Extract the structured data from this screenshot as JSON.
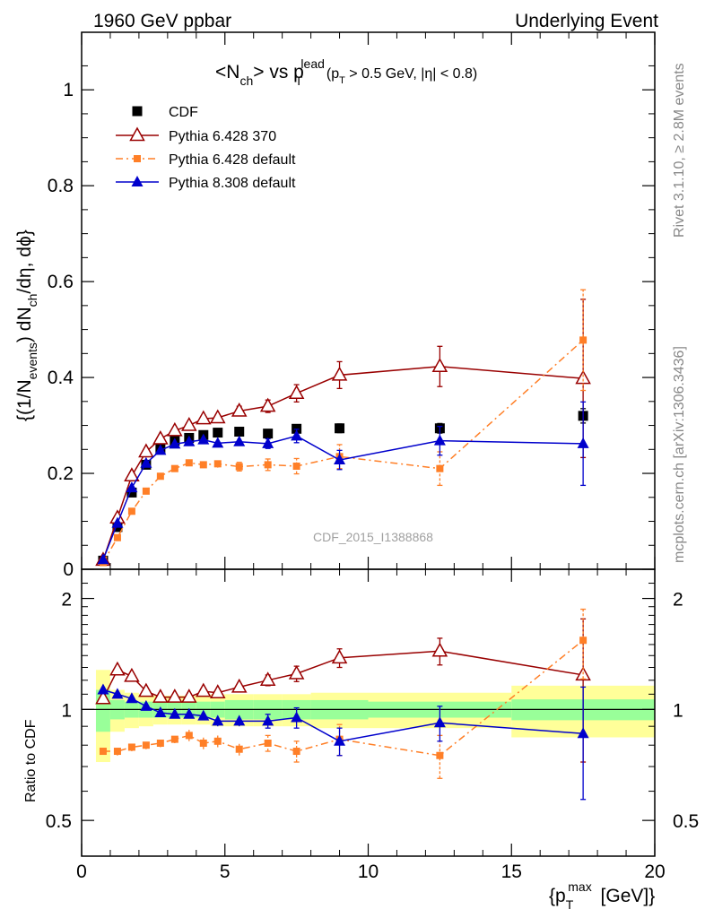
{
  "header": {
    "left": "1960 GeV ppbar",
    "right": "Underlying Event"
  },
  "plot_title": {
    "main": "<N",
    "main_sub": "ch",
    "mid": "> vs p",
    "mid_sub": "T",
    "mid_sup": "lead",
    "cut_open": "(p",
    "cut_sub": "T",
    "cut_rest": " > 0.5 GeV, |η| < 0.8)"
  },
  "side_labels": {
    "rivet": "Rivet 3.1.10, ≥ 2.8M events",
    "mcplots": "mcplots.cern.ch [arXiv:1306.3436]"
  },
  "watermark": "CDF_2015_I1388868",
  "chart_data": {
    "type": "scatter",
    "title": "<Nch> vs pT lead (pT > 0.5 GeV, |η| < 0.8)",
    "ylabel": "{(1/N_events) dN_ch/dη, dφ}",
    "xlabel": "{p_T^max [GeV]}",
    "ratio_ylabel": "Ratio to CDF",
    "xlim": [
      0,
      20
    ],
    "ylim": [
      0,
      1.12
    ],
    "ratio_ylim": [
      0.4,
      2.4
    ],
    "ratio_scale": "log",
    "x_ticks": [
      0,
      5,
      10,
      15,
      20
    ],
    "y_ticks": [
      0,
      0.2,
      0.4,
      0.6,
      0.8,
      1
    ],
    "y_tick_labels": [
      "0",
      "0.2",
      "0.4",
      "0.6",
      "0.8",
      "1"
    ],
    "ratio_ticks": [
      0.5,
      1,
      2
    ],
    "ratio_tick_labels": [
      "0.5",
      "1",
      "2"
    ],
    "legend_position": "top-left",
    "legend": [
      "CDF",
      "Pythia 6.428 370",
      "Pythia 6.428 default",
      "Pythia 8.308 default"
    ],
    "x": [
      0.75,
      1.25,
      1.75,
      2.25,
      2.75,
      3.25,
      3.75,
      4.25,
      4.75,
      5.5,
      6.5,
      7.5,
      9.0,
      12.5,
      17.5
    ],
    "band_edges": [
      0.5,
      1.0,
      1.5,
      2.0,
      2.5,
      3.0,
      3.5,
      4.0,
      4.5,
      5.0,
      6.0,
      7.0,
      8.0,
      10.0,
      15.0,
      20.0
    ],
    "band_inner": [
      0.13,
      0.06,
      0.05,
      0.05,
      0.05,
      0.05,
      0.05,
      0.05,
      0.05,
      0.06,
      0.06,
      0.06,
      0.06,
      0.05,
      0.065
    ],
    "band_outer": [
      0.28,
      0.13,
      0.11,
      0.1,
      0.09,
      0.09,
      0.09,
      0.09,
      0.1,
      0.1,
      0.1,
      0.1,
      0.11,
      0.11,
      0.16
    ],
    "series": [
      {
        "name": "CDF",
        "color": "#000000",
        "marker": "square",
        "line": "none",
        "values": [
          0.018,
          0.088,
          0.16,
          0.218,
          0.252,
          0.268,
          0.274,
          0.28,
          0.285,
          0.287,
          0.283,
          0.293,
          0.294,
          0.294,
          0.32
        ],
        "errors": [
          0.002,
          0.004,
          0.005,
          0.006,
          0.006,
          0.006,
          0.006,
          0.006,
          0.007,
          0.007,
          0.007,
          0.008,
          0.009,
          0.01,
          0.015
        ],
        "ratio": [
          1,
          1,
          1,
          1,
          1,
          1,
          1,
          1,
          1,
          1,
          1,
          1,
          1,
          1,
          1
        ],
        "ratio_err": [
          0,
          0,
          0,
          0,
          0,
          0,
          0,
          0,
          0,
          0,
          0,
          0,
          0,
          0,
          0
        ]
      },
      {
        "name": "Pythia 6.428 370",
        "color": "#990000",
        "marker": "open-triangle",
        "line": "solid",
        "values": [
          0.019,
          0.107,
          0.195,
          0.245,
          0.272,
          0.289,
          0.3,
          0.314,
          0.316,
          0.33,
          0.34,
          0.367,
          0.405,
          0.423,
          0.398
        ],
        "errors": [
          0.002,
          0.004,
          0.005,
          0.006,
          0.006,
          0.007,
          0.007,
          0.008,
          0.008,
          0.01,
          0.013,
          0.018,
          0.028,
          0.042,
          0.165
        ],
        "ratio": [
          1.07,
          1.28,
          1.23,
          1.12,
          1.08,
          1.08,
          1.08,
          1.12,
          1.11,
          1.15,
          1.2,
          1.25,
          1.38,
          1.44,
          1.24
        ],
        "ratio_err": [
          0.01,
          0.03,
          0.03,
          0.02,
          0.02,
          0.02,
          0.03,
          0.03,
          0.03,
          0.03,
          0.04,
          0.06,
          0.08,
          0.12,
          0.52
        ]
      },
      {
        "name": "Pythia 6.428 default",
        "color": "#ff7f27",
        "marker": "small-square",
        "line": "dash-dot",
        "values": [
          0.014,
          0.066,
          0.121,
          0.163,
          0.194,
          0.21,
          0.222,
          0.218,
          0.22,
          0.214,
          0.218,
          0.215,
          0.235,
          0.21,
          0.478
        ],
        "errors": [
          0.002,
          0.003,
          0.004,
          0.005,
          0.006,
          0.006,
          0.007,
          0.007,
          0.008,
          0.009,
          0.012,
          0.016,
          0.025,
          0.035,
          0.105
        ],
        "ratio": [
          0.77,
          0.77,
          0.79,
          0.8,
          0.81,
          0.83,
          0.85,
          0.81,
          0.82,
          0.78,
          0.81,
          0.77,
          0.83,
          0.75,
          1.54
        ],
        "ratio_err": [
          0.01,
          0.02,
          0.02,
          0.02,
          0.02,
          0.02,
          0.03,
          0.03,
          0.03,
          0.03,
          0.04,
          0.05,
          0.08,
          0.1,
          0.33
        ]
      },
      {
        "name": "Pythia 8.308 default",
        "color": "#0000cc",
        "marker": "triangle",
        "line": "solid",
        "values": [
          0.02,
          0.096,
          0.17,
          0.221,
          0.248,
          0.261,
          0.266,
          0.27,
          0.263,
          0.266,
          0.262,
          0.278,
          0.228,
          0.268,
          0.262
        ],
        "errors": [
          0.002,
          0.004,
          0.005,
          0.005,
          0.006,
          0.006,
          0.006,
          0.006,
          0.007,
          0.008,
          0.01,
          0.014,
          0.02,
          0.03,
          0.087
        ],
        "ratio": [
          1.13,
          1.1,
          1.07,
          1.02,
          0.98,
          0.97,
          0.97,
          0.96,
          0.93,
          0.93,
          0.93,
          0.95,
          0.82,
          0.92,
          0.86
        ],
        "ratio_err": [
          0.01,
          0.02,
          0.02,
          0.02,
          0.02,
          0.02,
          0.02,
          0.02,
          0.03,
          0.03,
          0.04,
          0.06,
          0.07,
          0.1,
          0.29
        ]
      }
    ]
  }
}
